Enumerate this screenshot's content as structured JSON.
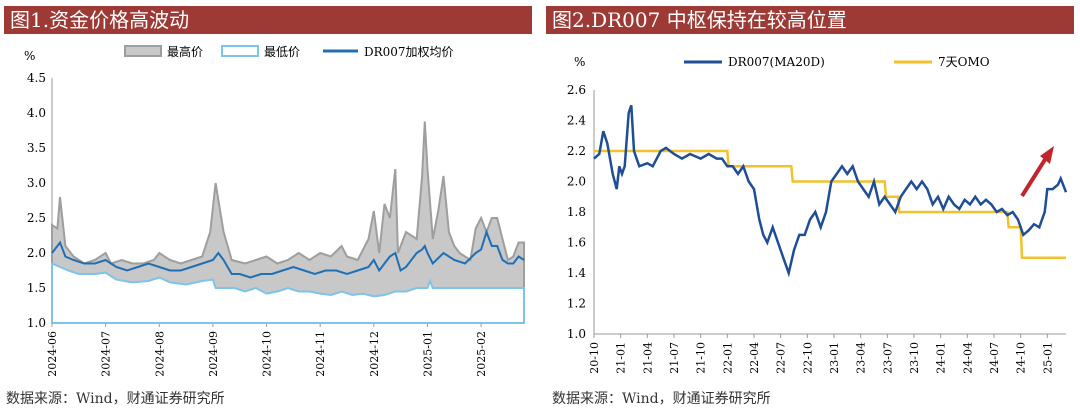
{
  "chart_data": [
    {
      "type": "area",
      "title": "图1.资金价格高波动",
      "ylabel": "%",
      "ylim": [
        1.0,
        4.5
      ],
      "yticks": [
        "1.0",
        "1.5",
        "2.0",
        "2.5",
        "3.0",
        "3.5",
        "4.0",
        "4.5"
      ],
      "xticks": [
        "2024-06",
        "2024-07",
        "2024-08",
        "2024-09",
        "2024-10",
        "2024-11",
        "2024-12",
        "2025-01",
        "2025-02"
      ],
      "xrange_months": [
        0,
        8.8
      ],
      "grid": false,
      "legend_position": "top",
      "series": [
        {
          "name": "最高价",
          "type": "area",
          "color": "#9e9e9e",
          "points": [
            [
              0,
              2.4
            ],
            [
              0.1,
              2.35
            ],
            [
              0.15,
              2.8
            ],
            [
              0.25,
              2.1
            ],
            [
              0.4,
              1.95
            ],
            [
              0.6,
              1.85
            ],
            [
              0.8,
              1.9
            ],
            [
              1.0,
              2.0
            ],
            [
              1.1,
              1.85
            ],
            [
              1.3,
              1.9
            ],
            [
              1.5,
              1.85
            ],
            [
              1.7,
              1.85
            ],
            [
              1.9,
              1.9
            ],
            [
              2.0,
              2.0
            ],
            [
              2.2,
              1.9
            ],
            [
              2.4,
              1.85
            ],
            [
              2.6,
              1.9
            ],
            [
              2.8,
              1.95
            ],
            [
              2.95,
              2.3
            ],
            [
              3.05,
              3.0
            ],
            [
              3.2,
              2.3
            ],
            [
              3.35,
              1.9
            ],
            [
              3.6,
              1.85
            ],
            [
              3.8,
              1.9
            ],
            [
              4.0,
              1.95
            ],
            [
              4.2,
              1.85
            ],
            [
              4.4,
              1.9
            ],
            [
              4.6,
              2.0
            ],
            [
              4.8,
              1.9
            ],
            [
              5.0,
              2.0
            ],
            [
              5.2,
              1.95
            ],
            [
              5.4,
              2.1
            ],
            [
              5.5,
              1.95
            ],
            [
              5.7,
              1.9
            ],
            [
              5.9,
              2.2
            ],
            [
              6.0,
              2.6
            ],
            [
              6.1,
              2.0
            ],
            [
              6.2,
              2.7
            ],
            [
              6.3,
              2.5
            ],
            [
              6.4,
              3.2
            ],
            [
              6.45,
              2.0
            ],
            [
              6.6,
              2.3
            ],
            [
              6.8,
              2.2
            ],
            [
              6.9,
              3.1
            ],
            [
              6.95,
              3.88
            ],
            [
              7.0,
              3.2
            ],
            [
              7.1,
              2.2
            ],
            [
              7.2,
              2.6
            ],
            [
              7.3,
              3.1
            ],
            [
              7.4,
              2.3
            ],
            [
              7.5,
              2.1
            ],
            [
              7.6,
              2.0
            ],
            [
              7.8,
              1.9
            ],
            [
              7.9,
              2.35
            ],
            [
              8.0,
              2.5
            ],
            [
              8.1,
              2.3
            ],
            [
              8.2,
              2.5
            ],
            [
              8.3,
              2.5
            ],
            [
              8.4,
              2.2
            ],
            [
              8.5,
              1.9
            ],
            [
              8.6,
              1.95
            ],
            [
              8.7,
              2.15
            ],
            [
              8.8,
              2.15
            ]
          ]
        },
        {
          "name": "最低价",
          "type": "area",
          "color": "#7cc4ea",
          "points": [
            [
              0,
              1.85
            ],
            [
              0.3,
              1.75
            ],
            [
              0.5,
              1.7
            ],
            [
              0.8,
              1.7
            ],
            [
              1.0,
              1.72
            ],
            [
              1.2,
              1.62
            ],
            [
              1.5,
              1.58
            ],
            [
              1.8,
              1.6
            ],
            [
              2.0,
              1.65
            ],
            [
              2.2,
              1.58
            ],
            [
              2.5,
              1.55
            ],
            [
              2.8,
              1.6
            ],
            [
              3.0,
              1.62
            ],
            [
              3.05,
              1.5
            ],
            [
              3.4,
              1.5
            ],
            [
              3.6,
              1.45
            ],
            [
              3.8,
              1.5
            ],
            [
              4.0,
              1.42
            ],
            [
              4.2,
              1.45
            ],
            [
              4.4,
              1.5
            ],
            [
              4.6,
              1.45
            ],
            [
              4.8,
              1.45
            ],
            [
              5.0,
              1.42
            ],
            [
              5.2,
              1.4
            ],
            [
              5.4,
              1.45
            ],
            [
              5.6,
              1.4
            ],
            [
              5.8,
              1.42
            ],
            [
              6.0,
              1.38
            ],
            [
              6.2,
              1.4
            ],
            [
              6.4,
              1.45
            ],
            [
              6.6,
              1.45
            ],
            [
              6.8,
              1.5
            ],
            [
              7.0,
              1.5
            ],
            [
              7.05,
              1.6
            ],
            [
              7.1,
              1.5
            ],
            [
              7.3,
              1.5
            ],
            [
              8.0,
              1.5
            ],
            [
              8.8,
              1.5
            ]
          ]
        },
        {
          "name": "DR007加权均价",
          "type": "line",
          "color": "#1f6fb5",
          "points": [
            [
              0,
              2.0
            ],
            [
              0.1,
              2.1
            ],
            [
              0.15,
              2.15
            ],
            [
              0.25,
              1.95
            ],
            [
              0.4,
              1.9
            ],
            [
              0.6,
              1.85
            ],
            [
              0.8,
              1.85
            ],
            [
              1.0,
              1.9
            ],
            [
              1.2,
              1.8
            ],
            [
              1.4,
              1.75
            ],
            [
              1.6,
              1.8
            ],
            [
              1.8,
              1.85
            ],
            [
              2.0,
              1.8
            ],
            [
              2.2,
              1.75
            ],
            [
              2.4,
              1.75
            ],
            [
              2.6,
              1.8
            ],
            [
              2.8,
              1.85
            ],
            [
              3.0,
              1.9
            ],
            [
              3.1,
              2.0
            ],
            [
              3.2,
              1.9
            ],
            [
              3.35,
              1.7
            ],
            [
              3.5,
              1.7
            ],
            [
              3.7,
              1.65
            ],
            [
              3.9,
              1.7
            ],
            [
              4.1,
              1.7
            ],
            [
              4.3,
              1.75
            ],
            [
              4.5,
              1.8
            ],
            [
              4.7,
              1.75
            ],
            [
              4.9,
              1.7
            ],
            [
              5.1,
              1.75
            ],
            [
              5.3,
              1.75
            ],
            [
              5.5,
              1.7
            ],
            [
              5.7,
              1.75
            ],
            [
              5.9,
              1.8
            ],
            [
              6.0,
              1.9
            ],
            [
              6.1,
              1.75
            ],
            [
              6.2,
              1.85
            ],
            [
              6.3,
              1.95
            ],
            [
              6.4,
              2.0
            ],
            [
              6.5,
              1.75
            ],
            [
              6.6,
              1.8
            ],
            [
              6.8,
              2.0
            ],
            [
              6.9,
              2.05
            ],
            [
              6.95,
              2.1
            ],
            [
              7.0,
              2.0
            ],
            [
              7.1,
              1.85
            ],
            [
              7.3,
              2.0
            ],
            [
              7.5,
              1.9
            ],
            [
              7.7,
              1.85
            ],
            [
              7.9,
              2.0
            ],
            [
              8.0,
              2.05
            ],
            [
              8.1,
              2.3
            ],
            [
              8.2,
              2.1
            ],
            [
              8.3,
              2.1
            ],
            [
              8.4,
              1.9
            ],
            [
              8.5,
              1.85
            ],
            [
              8.6,
              1.85
            ],
            [
              8.7,
              1.95
            ],
            [
              8.8,
              1.9
            ]
          ]
        }
      ]
    },
    {
      "type": "line",
      "title": "图2.DR007 中枢保持在较高位置",
      "ylabel": "%",
      "ylim": [
        1.0,
        2.6
      ],
      "yticks": [
        "1.0",
        "1.2",
        "1.4",
        "1.6",
        "1.8",
        "2.0",
        "2.2",
        "2.4",
        "2.6"
      ],
      "xticks": [
        "20-10",
        "21-01",
        "21-04",
        "21-07",
        "21-10",
        "22-01",
        "22-04",
        "22-07",
        "22-10",
        "23-01",
        "23-04",
        "23-07",
        "23-10",
        "24-01",
        "24-04",
        "24-07",
        "24-10",
        "25-01"
      ],
      "xrange_quarters": [
        0,
        17.7
      ],
      "grid": false,
      "legend_position": "top",
      "annotation": "red-up-arrow",
      "series": [
        {
          "name": "DR007(MA20D)",
          "color": "#1f4e96",
          "points": [
            [
              0,
              2.15
            ],
            [
              0.2,
              2.18
            ],
            [
              0.35,
              2.33
            ],
            [
              0.5,
              2.25
            ],
            [
              0.7,
              2.05
            ],
            [
              0.85,
              1.95
            ],
            [
              0.95,
              2.1
            ],
            [
              1.05,
              2.05
            ],
            [
              1.15,
              2.1
            ],
            [
              1.3,
              2.45
            ],
            [
              1.4,
              2.5
            ],
            [
              1.5,
              2.2
            ],
            [
              1.7,
              2.1
            ],
            [
              2.0,
              2.12
            ],
            [
              2.2,
              2.1
            ],
            [
              2.5,
              2.2
            ],
            [
              2.7,
              2.22
            ],
            [
              3.0,
              2.18
            ],
            [
              3.3,
              2.15
            ],
            [
              3.6,
              2.18
            ],
            [
              4.0,
              2.15
            ],
            [
              4.3,
              2.18
            ],
            [
              4.6,
              2.15
            ],
            [
              4.8,
              2.15
            ],
            [
              5.0,
              2.1
            ],
            [
              5.2,
              2.1
            ],
            [
              5.4,
              2.05
            ],
            [
              5.6,
              2.1
            ],
            [
              5.8,
              2.0
            ],
            [
              6.0,
              1.95
            ],
            [
              6.2,
              1.75
            ],
            [
              6.35,
              1.65
            ],
            [
              6.5,
              1.6
            ],
            [
              6.7,
              1.7
            ],
            [
              6.9,
              1.6
            ],
            [
              7.1,
              1.5
            ],
            [
              7.3,
              1.4
            ],
            [
              7.5,
              1.55
            ],
            [
              7.7,
              1.65
            ],
            [
              7.9,
              1.65
            ],
            [
              8.1,
              1.75
            ],
            [
              8.3,
              1.8
            ],
            [
              8.5,
              1.7
            ],
            [
              8.7,
              1.8
            ],
            [
              8.9,
              2.0
            ],
            [
              9.1,
              2.05
            ],
            [
              9.3,
              2.1
            ],
            [
              9.5,
              2.05
            ],
            [
              9.7,
              2.1
            ],
            [
              9.9,
              2.0
            ],
            [
              10.1,
              1.95
            ],
            [
              10.3,
              1.9
            ],
            [
              10.5,
              2.0
            ],
            [
              10.7,
              1.85
            ],
            [
              10.9,
              1.9
            ],
            [
              11.1,
              1.85
            ],
            [
              11.3,
              1.8
            ],
            [
              11.5,
              1.9
            ],
            [
              11.7,
              1.95
            ],
            [
              11.9,
              2.0
            ],
            [
              12.1,
              1.95
            ],
            [
              12.3,
              2.0
            ],
            [
              12.5,
              1.95
            ],
            [
              12.7,
              1.85
            ],
            [
              12.9,
              1.9
            ],
            [
              13.1,
              1.82
            ],
            [
              13.3,
              1.9
            ],
            [
              13.5,
              1.85
            ],
            [
              13.7,
              1.82
            ],
            [
              13.9,
              1.88
            ],
            [
              14.1,
              1.85
            ],
            [
              14.3,
              1.9
            ],
            [
              14.5,
              1.85
            ],
            [
              14.7,
              1.88
            ],
            [
              14.9,
              1.85
            ],
            [
              15.1,
              1.8
            ],
            [
              15.3,
              1.82
            ],
            [
              15.5,
              1.78
            ],
            [
              15.7,
              1.8
            ],
            [
              15.9,
              1.75
            ],
            [
              16.1,
              1.65
            ],
            [
              16.3,
              1.68
            ],
            [
              16.5,
              1.72
            ],
            [
              16.7,
              1.7
            ],
            [
              16.9,
              1.8
            ],
            [
              17.0,
              1.95
            ],
            [
              17.2,
              1.95
            ],
            [
              17.4,
              1.98
            ],
            [
              17.5,
              2.02
            ],
            [
              17.7,
              1.93
            ]
          ]
        },
        {
          "name": "7天OMO",
          "color": "#f2c12e",
          "step": true,
          "points": [
            [
              0,
              2.2
            ],
            [
              5.0,
              2.2
            ],
            [
              5.05,
              2.1
            ],
            [
              7.4,
              2.1
            ],
            [
              7.45,
              2.0
            ],
            [
              10.9,
              2.0
            ],
            [
              10.95,
              1.9
            ],
            [
              11.4,
              1.9
            ],
            [
              11.45,
              1.8
            ],
            [
              15.5,
              1.8
            ],
            [
              15.55,
              1.7
            ],
            [
              16.0,
              1.7
            ],
            [
              16.05,
              1.5
            ],
            [
              17.7,
              1.5
            ]
          ]
        }
      ]
    }
  ],
  "sources": [
    "数据来源：Wind，财通证券研究所",
    "数据来源：Wind，财通证券研究所"
  ]
}
